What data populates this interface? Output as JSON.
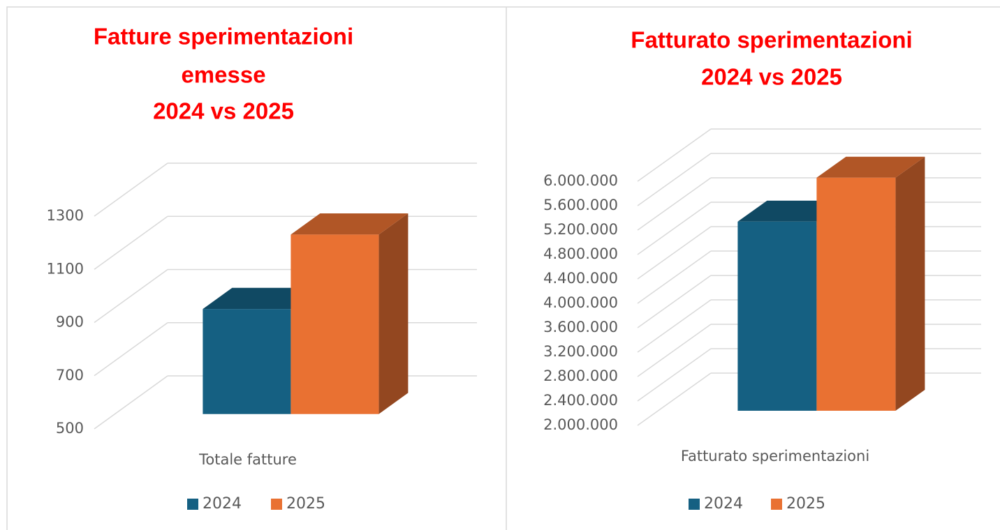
{
  "chart_data": [
    {
      "type": "bar3d",
      "title": [
        "Fatture sperimentazioni",
        "emesse",
        "2024 vs 2025"
      ],
      "categories": [
        "Totale fatture"
      ],
      "series": [
        {
          "name": "2024",
          "color": "#156082",
          "values": [
            895
          ]
        },
        {
          "name": "2025",
          "color": "#e97132",
          "values": [
            1175
          ]
        }
      ],
      "ylim": [
        500,
        1300
      ],
      "yticks": [
        500,
        700,
        900,
        1100,
        1300
      ],
      "grid": true,
      "legend": "bottom"
    },
    {
      "type": "bar3d",
      "title": [
        "Fatturato sperimentazioni",
        "2024 vs 2025"
      ],
      "categories": [
        "Fatturato sperimentazioni"
      ],
      "series": [
        {
          "name": "2024",
          "color": "#156082",
          "values": [
            5100000
          ]
        },
        {
          "name": "2025",
          "color": "#e97132",
          "values": [
            5820000
          ]
        }
      ],
      "ylim": [
        2000000,
        6000000
      ],
      "yticks": [
        {
          "value": 2000000,
          "label": "2.000.000"
        },
        {
          "value": 2400000,
          "label": "2.400.000"
        },
        {
          "value": 2800000,
          "label": "2.800.000"
        },
        {
          "value": 3200000,
          "label": "3.200.000"
        },
        {
          "value": 3600000,
          "label": "3.600.000"
        },
        {
          "value": 4000000,
          "label": "4.000.000"
        },
        {
          "value": 4400000,
          "label": "4.400.000"
        },
        {
          "value": 4800000,
          "label": "4.800.000"
        },
        {
          "value": 5200000,
          "label": "5.200.000"
        },
        {
          "value": 5600000,
          "label": "5.600.000"
        },
        {
          "value": 6000000,
          "label": "6.000.000"
        }
      ],
      "grid": true,
      "legend": "bottom"
    }
  ]
}
